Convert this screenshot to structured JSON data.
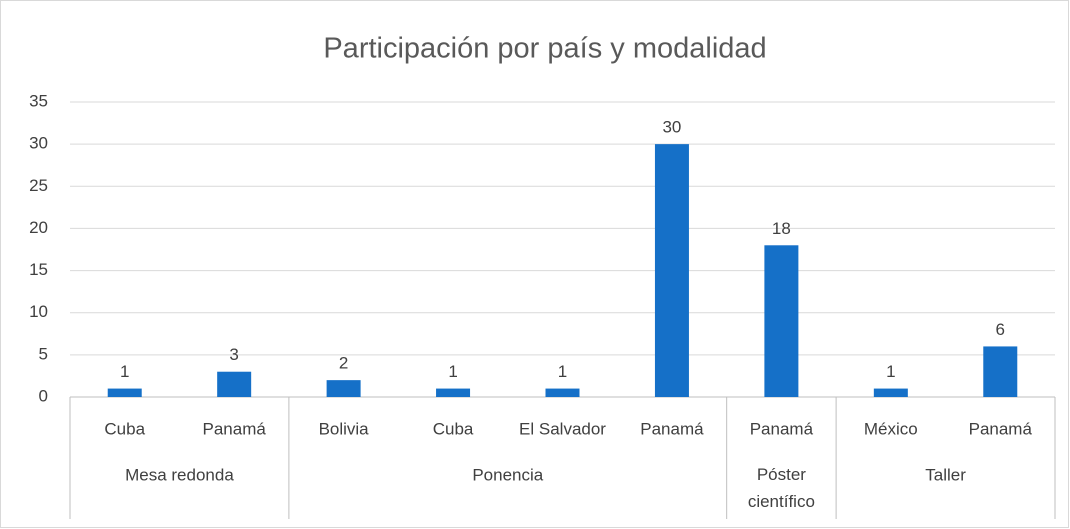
{
  "chart_data": {
    "type": "bar",
    "title": "Participación por país y modalidad",
    "groups": [
      {
        "name": "Mesa redonda",
        "categories": [
          "Cuba",
          "Panamá"
        ],
        "values": [
          1,
          3
        ]
      },
      {
        "name": "Ponencia",
        "categories": [
          "Bolivia",
          "Cuba",
          "El Salvador",
          "Panamá"
        ],
        "values": [
          2,
          1,
          1,
          30
        ]
      },
      {
        "name": "Póster científico",
        "categories": [
          "Panamá"
        ],
        "values": [
          18
        ]
      },
      {
        "name": "Taller",
        "categories": [
          "México",
          "Panamá"
        ],
        "values": [
          1,
          6
        ]
      }
    ],
    "color": "#1570c8",
    "ylim": [
      0,
      35
    ],
    "yticks": [
      0,
      5,
      10,
      15,
      20,
      25,
      30,
      35
    ],
    "grid": true
  }
}
